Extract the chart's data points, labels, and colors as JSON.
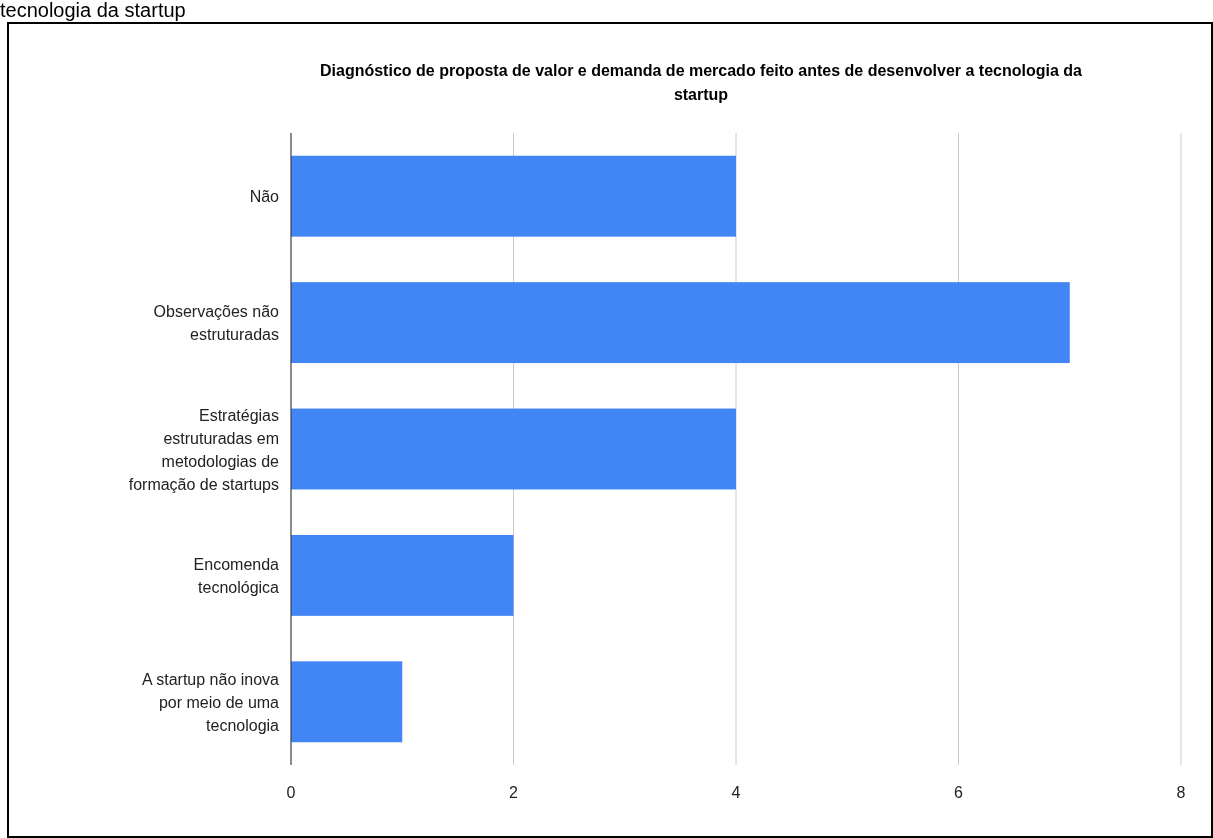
{
  "chart_data": {
    "type": "bar",
    "orientation": "horizontal",
    "title": "Diagnóstico de proposta de valor e demanda de mercado feito antes de desenvolver a tecnologia da startup",
    "annotations": [
      "tecnologia da startup"
    ],
    "categories": [
      "Não",
      "Observações não estruturadas",
      "Estratégias estruturadas em metodologias de formação de startups",
      "Encomenda tecnológica",
      "A startup não inova por meio de uma tecnologia"
    ],
    "values": [
      4,
      7,
      4,
      2,
      1
    ],
    "color": "#4285f4",
    "xlim": [
      0,
      8
    ],
    "xticks": [
      0,
      2,
      4,
      6,
      8
    ],
    "grid": "x"
  }
}
